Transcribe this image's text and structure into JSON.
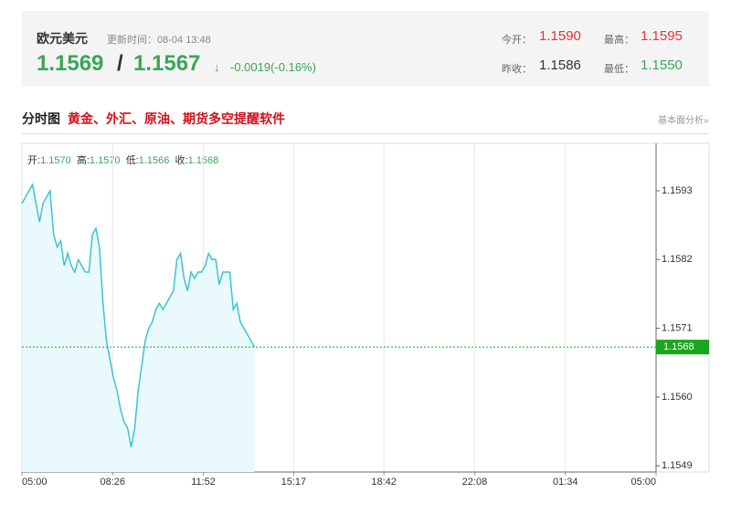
{
  "header": {
    "title": "欧元美元",
    "update_time": "更新时间：08-04 13:48",
    "bid": "1.1569",
    "separator": "/",
    "ask": "1.1567",
    "arrow": "↓",
    "change": "-0.0019(-0.16%)",
    "stats": [
      {
        "label": "今开：",
        "value": "1.1590"
      },
      {
        "label": "最高：",
        "value": "1.1595"
      },
      {
        "label": "昨收：",
        "value": "1.1586"
      },
      {
        "label": "最低：",
        "value": "1.1550"
      }
    ]
  },
  "section": {
    "title": "分时图",
    "promo": "黄金、外汇、原油、期货多空提醒软件",
    "link": "基本面分析»"
  },
  "ohlc": [
    {
      "label": "开:",
      "value": "1.1570"
    },
    {
      "label": "高:",
      "value": "1.1570"
    },
    {
      "label": "低:",
      "value": "1.1566"
    },
    {
      "label": "收:",
      "value": "1.1568"
    }
  ],
  "chart_data": {
    "type": "area",
    "color": "#3cc3d3",
    "fill": "#eafafc",
    "x": [
      "05:00",
      "05:08",
      "05:16",
      "05:24",
      "05:32",
      "05:40",
      "05:48",
      "05:56",
      "06:04",
      "06:12",
      "06:20",
      "06:28",
      "06:36",
      "06:44",
      "06:52",
      "07:00",
      "07:08",
      "07:16",
      "07:24",
      "07:32",
      "07:40",
      "07:48",
      "07:56",
      "08:04",
      "08:12",
      "08:20",
      "08:28",
      "08:36",
      "08:44",
      "08:52",
      "09:00",
      "09:08",
      "09:16",
      "09:24",
      "09:32",
      "09:40",
      "09:48",
      "09:56",
      "10:04",
      "10:12",
      "10:20",
      "10:28",
      "10:36",
      "10:44",
      "10:52",
      "11:00",
      "11:08",
      "11:16",
      "11:24",
      "11:32",
      "11:40",
      "11:48",
      "11:56",
      "12:04",
      "12:12",
      "12:20",
      "12:28",
      "12:36",
      "12:44",
      "12:52",
      "13:00",
      "13:08",
      "13:16",
      "13:24",
      "13:32",
      "13:40",
      "13:48"
    ],
    "values": [
      1.1591,
      1.1592,
      1.1593,
      1.1594,
      1.1591,
      1.1588,
      1.1591,
      1.1592,
      1.1593,
      1.1586,
      1.1584,
      1.1585,
      1.1581,
      1.1583,
      1.1581,
      1.158,
      1.1582,
      1.1581,
      1.158,
      1.158,
      1.1586,
      1.1587,
      1.1584,
      1.1575,
      1.1569,
      1.1566,
      1.1563,
      1.1561,
      1.1558,
      1.1556,
      1.1555,
      1.1552,
      1.1555,
      1.1561,
      1.1565,
      1.1569,
      1.1571,
      1.1572,
      1.1574,
      1.1575,
      1.1574,
      1.1575,
      1.1576,
      1.1577,
      1.1582,
      1.1583,
      1.1579,
      1.1577,
      1.158,
      1.1579,
      1.158,
      1.158,
      1.1581,
      1.1583,
      1.1582,
      1.1582,
      1.1578,
      1.158,
      1.158,
      1.158,
      1.1574,
      1.1575,
      1.1572,
      1.1571,
      1.157,
      1.1569,
      1.1568
    ],
    "current": 1.1568,
    "current_color": "#1aa61a",
    "ylim": [
      1.1548,
      1.16006
    ],
    "yticks": [
      1.1593,
      1.1582,
      1.1571,
      {
        "value": 1.156,
        "label": "1.1560"
      },
      1.1549
    ],
    "xlim": [
      "05:00",
      "05:00"
    ],
    "xticks": [
      "05:00",
      "08:26",
      "11:52",
      "15:17",
      "18:42",
      "22:08",
      "01:34",
      "05:00"
    ],
    "grid": true
  }
}
